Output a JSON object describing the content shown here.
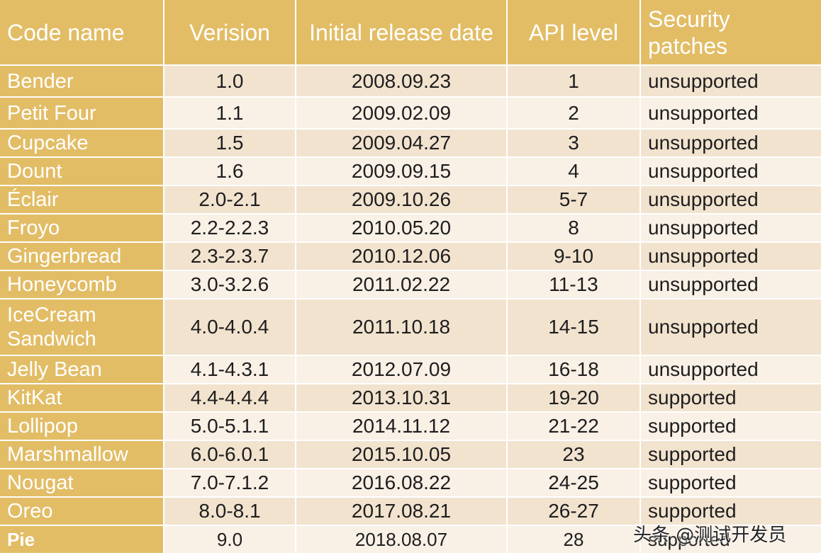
{
  "table": {
    "headers": [
      "Code name",
      "Verision",
      "Initial release date",
      "API level",
      "Security patches"
    ],
    "rows": [
      [
        "Bender",
        "1.0",
        "2008.09.23",
        "1",
        "unsupported"
      ],
      [
        "Petit Four",
        "1.1",
        "2009.02.09",
        "2",
        "unsupported"
      ],
      [
        "Cupcake",
        "1.5",
        "2009.04.27",
        "3",
        "unsupported"
      ],
      [
        "Dount",
        "1.6",
        "2009.09.15",
        "4",
        "unsupported"
      ],
      [
        "Éclair",
        "2.0-2.1",
        "2009.10.26",
        "5-7",
        "unsupported"
      ],
      [
        "Froyo",
        "2.2-2.2.3",
        "2010.05.20",
        "8",
        "unsupported"
      ],
      [
        "Gingerbread",
        "2.3-2.3.7",
        "2010.12.06",
        "9-10",
        "unsupported"
      ],
      [
        "Honeycomb",
        "3.0-3.2.6",
        "2011.02.22",
        "11-13",
        "unsupported"
      ],
      [
        "IceCream Sandwich",
        "4.0-4.0.4",
        "2011.10.18",
        "14-15",
        "unsupported"
      ],
      [
        "Jelly Bean",
        "4.1-4.3.1",
        "2012.07.09",
        "16-18",
        "unsupported"
      ],
      [
        "KitKat",
        "4.4-4.4.4",
        "2013.10.31",
        "19-20",
        "supported"
      ],
      [
        "Lollipop",
        "5.0-5.1.1",
        "2014.11.12",
        "21-22",
        "supported"
      ],
      [
        "Marshmallow",
        "6.0-6.0.1",
        "2015.10.05",
        "23",
        "supported"
      ],
      [
        "Nougat",
        "7.0-7.1.2",
        "2016.08.22",
        "24-25",
        "supported"
      ],
      [
        "Oreo",
        "8.0-8.1",
        "2017.08.21",
        "26-27",
        "supported"
      ],
      [
        "Pie",
        "9.0",
        "2018.08.07",
        "28",
        "supported"
      ]
    ]
  },
  "watermark": "头条 @测试开发员"
}
